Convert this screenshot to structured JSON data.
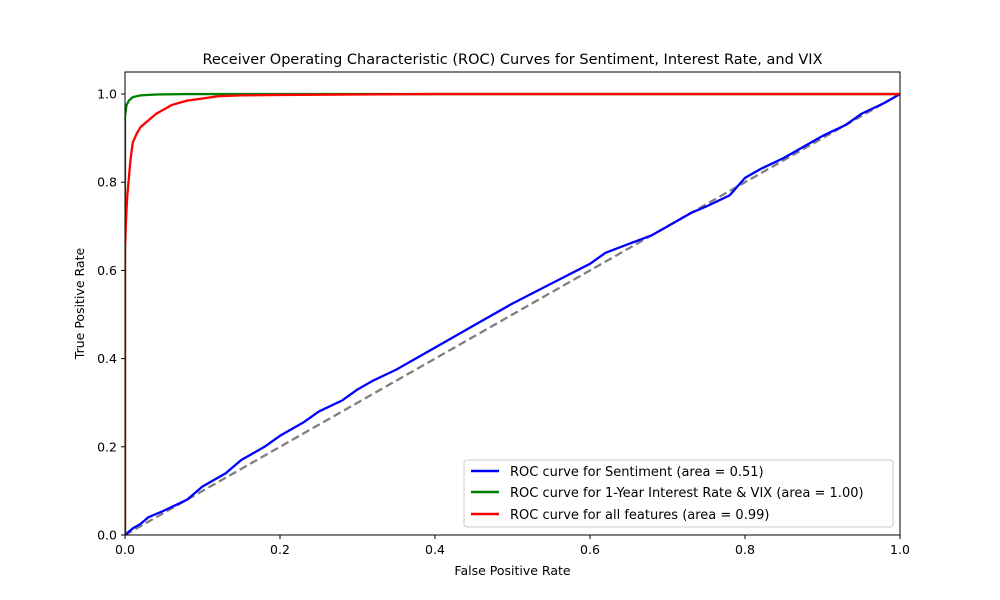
{
  "chart_data": {
    "type": "line",
    "title": "Receiver Operating Characteristic (ROC) Curves for Sentiment, Interest Rate, and VIX",
    "xlabel": "False Positive Rate",
    "ylabel": "True Positive Rate",
    "xlim": [
      0,
      1
    ],
    "ylim": [
      0,
      1.05
    ],
    "xticks": [
      "0.0",
      "0.2",
      "0.4",
      "0.6",
      "0.8",
      "1.0"
    ],
    "yticks": [
      "0.0",
      "0.2",
      "0.4",
      "0.6",
      "0.8",
      "1.0"
    ],
    "grid": false,
    "legend_position": "lower-right",
    "series": [
      {
        "name": "ROC curve for Sentiment (area = 0.51)",
        "color": "#0000ff",
        "style": "solid",
        "x": [
          0,
          0.01,
          0.02,
          0.03,
          0.05,
          0.08,
          0.1,
          0.13,
          0.15,
          0.18,
          0.2,
          0.23,
          0.25,
          0.28,
          0.3,
          0.32,
          0.35,
          0.4,
          0.45,
          0.5,
          0.55,
          0.6,
          0.62,
          0.65,
          0.68,
          0.7,
          0.73,
          0.75,
          0.78,
          0.8,
          0.82,
          0.85,
          0.88,
          0.9,
          0.93,
          0.95,
          0.98,
          1.0
        ],
        "y": [
          0,
          0.015,
          0.025,
          0.04,
          0.055,
          0.08,
          0.11,
          0.14,
          0.17,
          0.2,
          0.225,
          0.255,
          0.28,
          0.305,
          0.33,
          0.35,
          0.375,
          0.425,
          0.475,
          0.525,
          0.57,
          0.615,
          0.64,
          0.66,
          0.68,
          0.7,
          0.73,
          0.745,
          0.77,
          0.81,
          0.83,
          0.855,
          0.885,
          0.905,
          0.93,
          0.955,
          0.98,
          1.0
        ]
      },
      {
        "name": "ROC curve for 1-Year Interest Rate & VIX (area = 1.00)",
        "color": "#008000",
        "style": "solid",
        "x": [
          0,
          0,
          0.002,
          0.005,
          0.01,
          0.02,
          0.04,
          0.08,
          0.2,
          0.5,
          1.0
        ],
        "y": [
          0,
          0.95,
          0.975,
          0.985,
          0.993,
          0.997,
          0.999,
          1.0,
          1.0,
          1.0,
          1.0
        ],
        "clip": true
      },
      {
        "name": "ROC curve for all features (area = 0.99)",
        "color": "#ff0000",
        "style": "solid",
        "x": [
          0,
          0,
          0.001,
          0.002,
          0.003,
          0.005,
          0.007,
          0.01,
          0.015,
          0.02,
          0.03,
          0.04,
          0.05,
          0.06,
          0.08,
          0.1,
          0.12,
          0.15,
          0.2,
          0.3,
          0.4,
          0.6,
          1.0
        ],
        "y": [
          0,
          0.65,
          0.7,
          0.74,
          0.77,
          0.81,
          0.85,
          0.89,
          0.91,
          0.925,
          0.94,
          0.955,
          0.965,
          0.975,
          0.985,
          0.99,
          0.995,
          0.997,
          0.998,
          0.999,
          1.0,
          1.0,
          1.0
        ]
      },
      {
        "name": "",
        "color": "#808080",
        "style": "dashed",
        "x": [
          0,
          1
        ],
        "y": [
          0,
          1
        ]
      }
    ]
  }
}
